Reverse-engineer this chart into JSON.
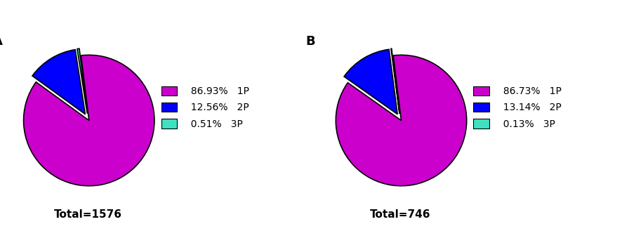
{
  "chart_A": {
    "values": [
      86.93,
      12.56,
      0.51
    ],
    "labels": [
      "1P",
      "2P",
      "3P"
    ],
    "percentages": [
      "86.93%",
      "12.56%",
      "0.51%"
    ],
    "colors": [
      "#CC00CC",
      "#0000FF",
      "#40E0C0"
    ],
    "total": "Total=1576",
    "panel_label": "A",
    "explode": [
      0.03,
      0.08,
      0.08
    ]
  },
  "chart_B": {
    "values": [
      86.73,
      13.14,
      0.13
    ],
    "labels": [
      "1P",
      "2P",
      "3P"
    ],
    "percentages": [
      "86.73%",
      "13.14%",
      "0.13%"
    ],
    "colors": [
      "#CC00CC",
      "#0000FF",
      "#40E0C0"
    ],
    "total": "Total=746",
    "panel_label": "B",
    "explode": [
      0.03,
      0.08,
      0.08
    ]
  },
  "legend_colors": [
    "#CC00CC",
    "#0000FF",
    "#40E0C0"
  ],
  "background_color": "#ffffff",
  "edgecolor": "#000000",
  "startangle": 97,
  "legend_fontsize": 10,
  "total_fontsize": 11,
  "panel_label_fontsize": 13
}
